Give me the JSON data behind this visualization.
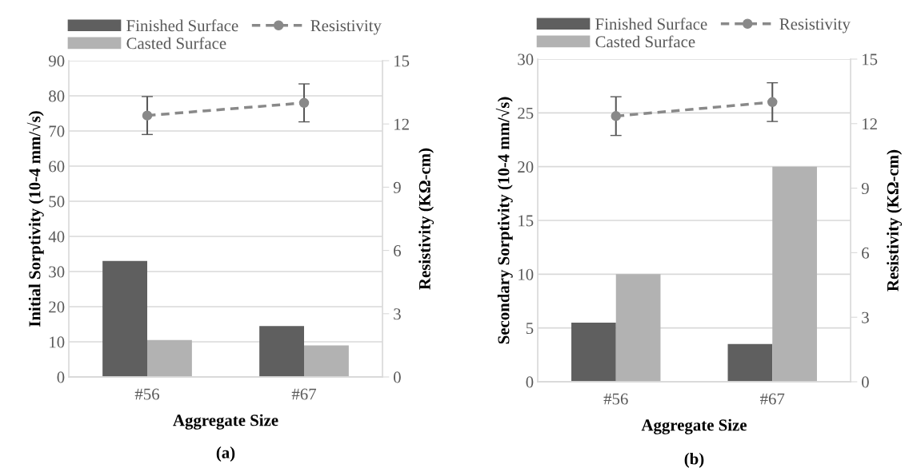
{
  "chart_data": [
    {
      "type": "bar",
      "categories": [
        "#56",
        "#67"
      ],
      "xlabel": "Aggregate Size",
      "ylabel": "Initial Sorptivity (10-4 mm/√s)",
      "y2label": "Resistivity (KΩ-cm)",
      "annotations": [
        "(a)"
      ],
      "series": [
        {
          "name": "Finished Surface",
          "color": "#5f5f5f",
          "values": [
            33,
            14.5
          ]
        },
        {
          "name": "Casted Surface",
          "color": "#b2b2b2",
          "values": [
            10.5,
            9
          ]
        },
        {
          "name": "Resistivity",
          "type": "line",
          "axis": "y2",
          "color": "#898989",
          "values": [
            12.4,
            13.0
          ],
          "errors": [
            0.9,
            0.9
          ],
          "marker": "circle",
          "line_style": "dashed"
        }
      ],
      "ylim": [
        0,
        90
      ],
      "yticks": [
        0,
        10,
        20,
        30,
        40,
        50,
        60,
        70,
        80,
        90
      ],
      "y2lim": [
        0,
        15
      ],
      "y2ticks": [
        0,
        3,
        6,
        9,
        12,
        15
      ],
      "grid": "y",
      "legend": "top"
    },
    {
      "type": "bar",
      "categories": [
        "#56",
        "#67"
      ],
      "xlabel": "Aggregate Size",
      "ylabel": "Secondary Sorptivity (10-4 mm/√s)",
      "y2label": "Resistivity (KΩ-cm)",
      "annotations": [
        "(b)"
      ],
      "series": [
        {
          "name": "Finished Surface",
          "color": "#5f5f5f",
          "values": [
            5.5,
            3.5
          ]
        },
        {
          "name": "Casted Surface",
          "color": "#b2b2b2",
          "values": [
            10,
            20
          ]
        },
        {
          "name": "Resistivity",
          "type": "line",
          "axis": "y2",
          "color": "#898989",
          "values": [
            12.35,
            13.0
          ],
          "errors": [
            0.9,
            0.9
          ],
          "marker": "circle",
          "line_style": "dashed"
        }
      ],
      "ylim": [
        0,
        30
      ],
      "yticks": [
        0,
        5,
        10,
        15,
        20,
        25,
        30
      ],
      "y2lim": [
        0,
        15
      ],
      "y2ticks": [
        0,
        3,
        6,
        9,
        12,
        15
      ],
      "grid": "y",
      "legend": "top"
    }
  ]
}
